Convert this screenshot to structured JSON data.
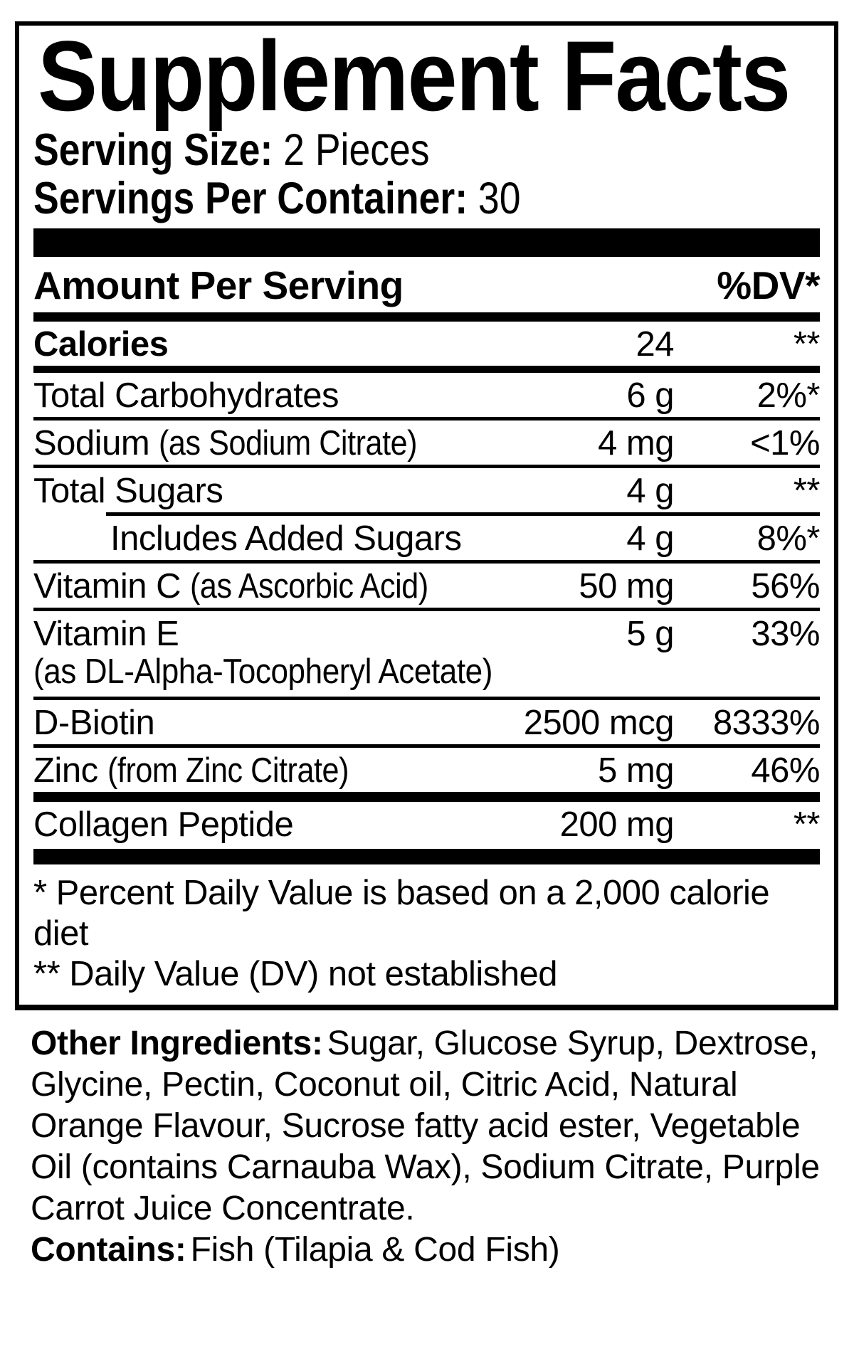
{
  "colors": {
    "ink": "#000000",
    "background": "#ffffff"
  },
  "label": {
    "title": "Supplement Facts",
    "serving_size": {
      "label": "Serving Size:",
      "value": "2 Pieces"
    },
    "servings_per_container": {
      "label": "Servings Per Container:",
      "value": "30"
    },
    "columns": {
      "amount_header": "Amount Per Serving",
      "dv_header": "%DV*"
    },
    "rows": [
      {
        "name": "Calories",
        "amount": "24",
        "dv": "**",
        "bold": true,
        "sep": "bar-md2"
      },
      {
        "name": "Total Carbohydrates",
        "amount": "6 g",
        "dv": "2%*",
        "sep": "bar-sm"
      },
      {
        "name": "Sodium",
        "detail": "(as Sodium Citrate)",
        "amount": "4 mg",
        "dv": "<1%",
        "sep": "thin"
      },
      {
        "name": "Total Sugars",
        "amount": "4 g",
        "dv": "**",
        "sep": "thin"
      },
      {
        "name": "Includes Added Sugars",
        "amount": "4 g",
        "dv": "8%*",
        "sep": "thin-indent",
        "indent": true
      },
      {
        "name": "Vitamin C",
        "detail": "(as Ascorbic Acid)",
        "amount": "50 mg",
        "dv": "56%",
        "sep": "thin"
      },
      {
        "name": "Vitamin E",
        "amount": "5 g",
        "dv": "33%",
        "sep": "thin",
        "sub": "(as DL-Alpha-Tocopheryl Acetate)"
      },
      {
        "name": "D-Biotin",
        "amount": "2500 mcg",
        "dv": "8333%",
        "sep": "thin"
      },
      {
        "name": "Zinc",
        "detail": "(from Zinc Citrate)",
        "amount": "5 mg",
        "dv": "46%",
        "sep": "thin"
      },
      {
        "name": "Collagen Peptide",
        "amount": "200 mg",
        "dv": "**",
        "sep": "bar-md"
      }
    ],
    "footnotes": [
      "* Percent Daily Value is based on a 2,000 calorie diet",
      "** Daily Value (DV) not established"
    ]
  },
  "other_ingredients": {
    "label": "Other Ingredients:",
    "text": "Sugar, Glucose Syrup, Dextrose, Glycine, Pectin, Coconut oil, Citric Acid, Natural Orange Flavour, Sucrose fatty acid ester, Vegetable Oil (contains Carnauba Wax), Sodium Citrate, Purple Carrot Juice Concentrate."
  },
  "contains": {
    "label": "Contains:",
    "text": "Fish (Tilapia & Cod Fish)"
  }
}
